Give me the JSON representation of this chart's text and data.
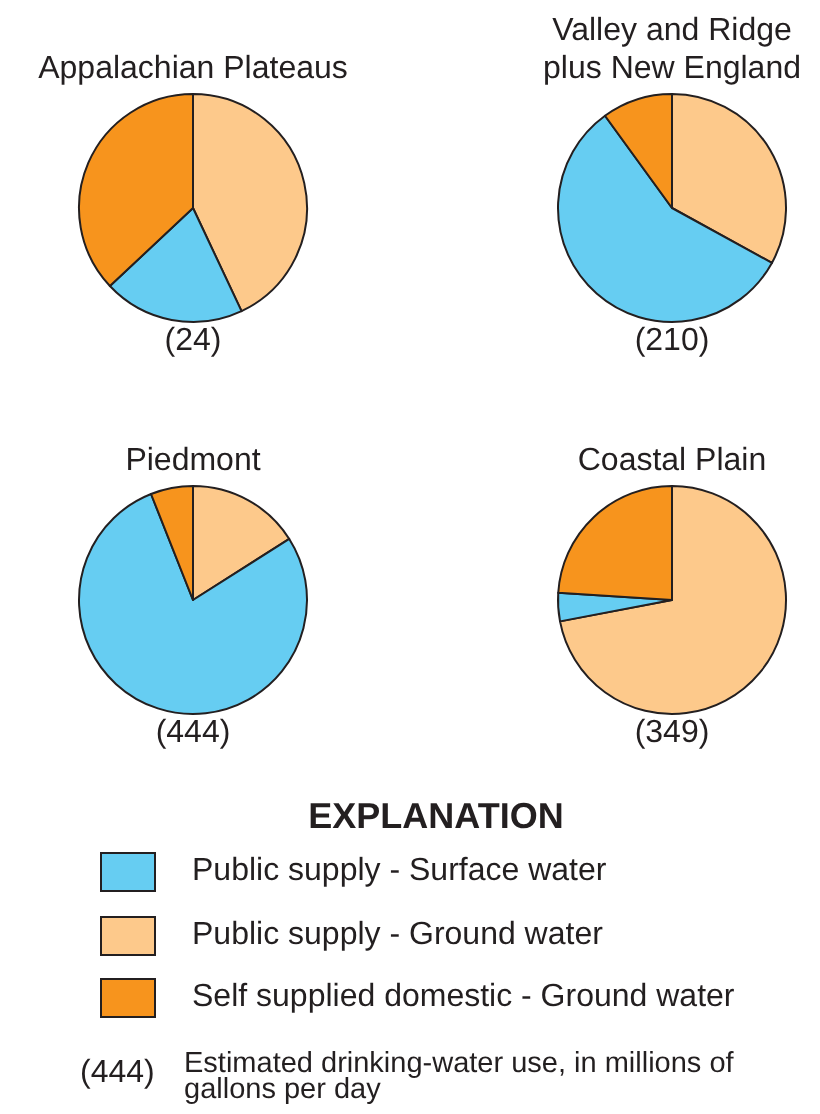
{
  "chart_data": {
    "type": "pie",
    "categories": [
      "Public supply - Surface water",
      "Public supply - Ground water",
      "Self supplied domestic - Ground water"
    ],
    "colors": [
      "#66cdf2",
      "#fdc98b",
      "#f7941d"
    ],
    "series": [
      {
        "name": "Appalachian Plateaus",
        "values": [
          20,
          43,
          37
        ]
      },
      {
        "name": "Valley and Ridge plus New England",
        "values": [
          57,
          33,
          10
        ]
      },
      {
        "name": "Piedmont",
        "values": [
          78,
          16,
          6
        ]
      },
      {
        "name": "Coastal Plain",
        "values": [
          4,
          72,
          24
        ]
      }
    ],
    "annotations": [
      "(24)",
      "(210)",
      "(444)",
      "(349)",
      "(444)",
      "Estimated drinking-water use, in millions of gallons per day"
    ],
    "legend": "bottom",
    "legend_title": "EXPLANATION"
  }
}
